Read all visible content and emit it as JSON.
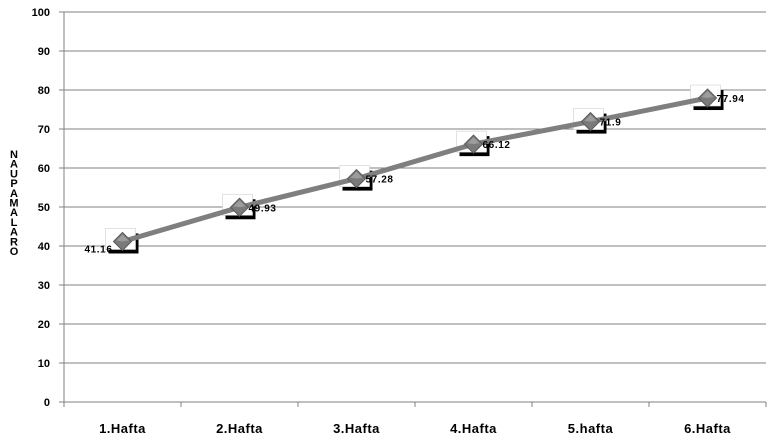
{
  "chart_data": {
    "type": "line",
    "categories": [
      "1.Hafta",
      "2.Hafta",
      "3.Hafta",
      "4.Hafta",
      "5.hafta",
      "6.Hafta"
    ],
    "series": [
      {
        "values": [
          41.16,
          49.93,
          57.28,
          66.12,
          71.9,
          77.94
        ],
        "data_labels": [
          "41.16",
          "49.93",
          "57.28",
          "66.12",
          "71.9",
          "77.94"
        ],
        "color": "#7f7f7f",
        "marker": "diamond"
      }
    ],
    "title": "",
    "xlabel": "",
    "ylabel": "NAUPAMALARO",
    "ylim": [
      0,
      100
    ],
    "yticks": [
      0,
      10,
      20,
      30,
      40,
      50,
      60,
      70,
      80,
      90,
      100
    ],
    "ytick_labels": [
      "0",
      "10",
      "20",
      "30",
      "40",
      "50",
      "60",
      "70",
      "80",
      "90",
      "100"
    ],
    "grid": true,
    "legend": "none",
    "colors": {
      "line": "#7f7f7f",
      "grid": "#808080",
      "axis": "#808080",
      "marker_fill": "#7a7a7a",
      "marker_box": "#000000"
    }
  }
}
